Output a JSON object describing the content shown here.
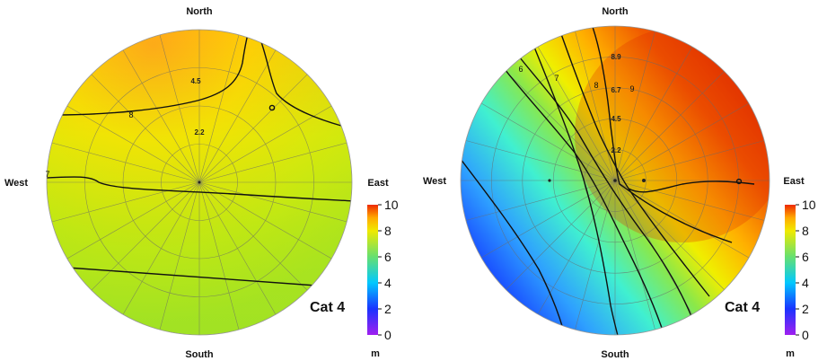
{
  "chart_data": [
    {
      "type": "heatmap",
      "title": "",
      "directions": {
        "north": "North",
        "south": "South",
        "east": "East",
        "west": "West"
      },
      "panel_label": "Cat 4",
      "unit": "m",
      "colorbar": {
        "min": 0,
        "max": 10,
        "ticks": [
          0,
          2,
          4,
          6,
          8,
          10
        ],
        "colors": [
          "#a020f0",
          "#1a33ff",
          "#00c8ff",
          "#66e070",
          "#f0ea00",
          "#ffaa00",
          "#ee2a00"
        ]
      },
      "ring_labels": [
        "2.2",
        "4.5"
      ],
      "contour_labels": [
        "7",
        "8"
      ],
      "value_field": {
        "center": 6.8,
        "north_east": 9.4,
        "south": 6.7,
        "west": 7.0
      }
    },
    {
      "type": "heatmap",
      "title": "",
      "directions": {
        "north": "North",
        "south": "South",
        "east": "East",
        "west": "West"
      },
      "panel_label": "Cat 4",
      "unit": "m",
      "colorbar": {
        "min": 0,
        "max": 10,
        "ticks": [
          0,
          2,
          4,
          6,
          8,
          10
        ],
        "colors": [
          "#a020f0",
          "#1a33ff",
          "#00c8ff",
          "#66e070",
          "#f0ea00",
          "#ffaa00",
          "#ee2a00"
        ]
      },
      "ring_labels": [
        "2.2",
        "4.5",
        "6.7",
        "8.9"
      ],
      "contour_labels": [
        "6",
        "7",
        "8",
        "9"
      ],
      "value_field": {
        "center": 7.5,
        "east": 9.5,
        "south_west": 2.5,
        "west": 4.0
      }
    }
  ]
}
